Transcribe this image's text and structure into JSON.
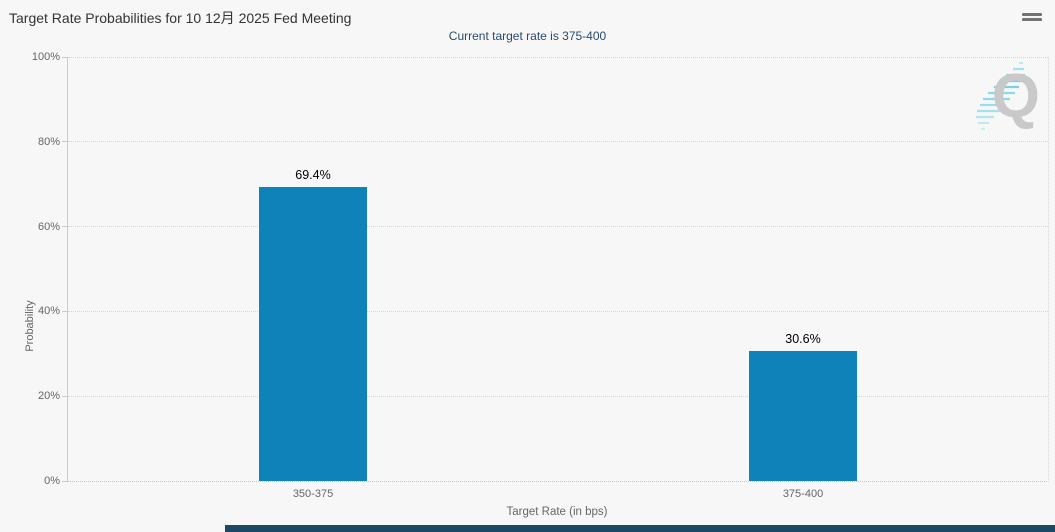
{
  "header": {
    "title": "Target Rate Probabilities for 10 12月 2025 Fed Meeting",
    "subtitle": "Current target rate is 375-400"
  },
  "menu": {
    "icon": "hamburger-icon",
    "tooltip_label": "Chart context menu"
  },
  "watermark": {
    "letter": "Q"
  },
  "chart_data": {
    "type": "bar",
    "title": "Target Rate Probabilities for 10 12月 2025 Fed Meeting",
    "subtitle": "Current target rate is 375-400",
    "categories": [
      "350-375",
      "375-400"
    ],
    "values": [
      69.4,
      30.6
    ],
    "value_labels": [
      "69.4%",
      "30.6%"
    ],
    "xlabel": "Target Rate (in bps)",
    "ylabel": "Probability",
    "ylim": [
      0,
      100
    ],
    "yticks": [
      0,
      20,
      40,
      60,
      80,
      100
    ],
    "ytick_labels": [
      "0%",
      "20%",
      "40%",
      "60%",
      "80%",
      "100%"
    ],
    "grid": "horizontal dotted",
    "legend": "none"
  },
  "colors": {
    "background": "#f7f7f7",
    "bar": "#1082ba",
    "title_text": "#333333",
    "subtitle_text": "#274b6d",
    "axis_text": "#666666",
    "grid_line": "#d4d4d4",
    "axis_line": "#cccccc",
    "watermark_letter": "#c9c9c9",
    "watermark_accent": "#7fd0e4",
    "footer_strip": "#1c4866"
  }
}
